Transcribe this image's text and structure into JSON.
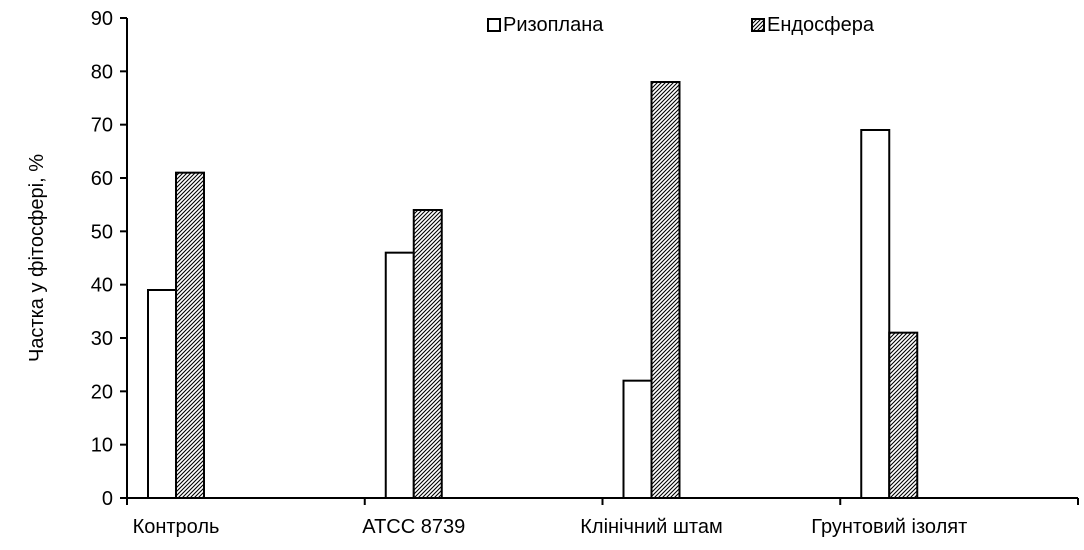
{
  "chart_data": {
    "type": "bar",
    "title": "",
    "xlabel": "",
    "ylabel": "Частка у фітосфері, %",
    "ylim": [
      0,
      90
    ],
    "yticks": [
      0,
      10,
      20,
      30,
      40,
      50,
      60,
      70,
      80,
      90
    ],
    "grid": false,
    "legend_position": "top-right",
    "categories": [
      "Контроль",
      "ATCC 8739",
      "Клінічний штам",
      "Грунтовий ізолят"
    ],
    "series": [
      {
        "name": "Ризоплана",
        "values": [
          39,
          46,
          22,
          69
        ],
        "fill": "#ffffff",
        "pattern": "none"
      },
      {
        "name": "Ендосфера",
        "values": [
          61,
          54,
          78,
          31
        ],
        "fill": "#ffffff",
        "pattern": "diagonal-hatch"
      }
    ],
    "colors": {
      "stroke": "#000000",
      "background": "#ffffff"
    }
  }
}
